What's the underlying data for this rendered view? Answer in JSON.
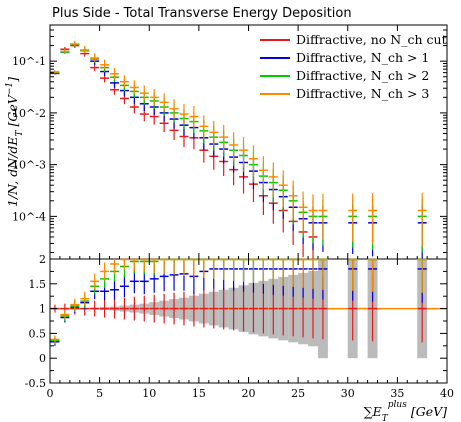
{
  "chart_data": {
    "type": "scatter",
    "title": "Plus Side - Total Transverse Energy Deposition",
    "xlabel": "∑E_T^plus [GeV]",
    "ylabel": "1/N, dN/dE_T [GeV^-1]",
    "ratio_ylabel": "",
    "xlim": [
      0,
      40
    ],
    "ylim": [
      1.5e-05,
      0.5
    ],
    "yscale": "log",
    "ratio_ylim": [
      -0.5,
      2.0
    ],
    "legend_position": "top-right",
    "x_ticks": [
      "0",
      "5",
      "10",
      "15",
      "20",
      "25",
      "30",
      "35",
      "40"
    ],
    "y_ticks": [
      "10^-4",
      "10^-3",
      "10^-2",
      "10^-1"
    ],
    "ratio_ticks": [
      "-0.5",
      "0",
      "0.5",
      "1",
      "1.5",
      "2"
    ],
    "x": [
      0.5,
      1.5,
      2.5,
      3.5,
      4.5,
      5.5,
      6.5,
      7.5,
      8.5,
      9.5,
      10.5,
      11.5,
      12.5,
      13.5,
      14.5,
      15.5,
      16.5,
      17.5,
      18.5,
      19.5,
      20.5,
      21.5,
      22.5,
      23.5,
      24.5,
      25.5,
      26.5,
      27.5,
      30.5,
      32.5,
      37.5
    ],
    "series": [
      {
        "name": "Diffractive, no N_ch cut",
        "color": "#e41a1c",
        "values": [
          0.06,
          0.17,
          0.2,
          0.14,
          0.075,
          0.047,
          0.028,
          0.019,
          0.013,
          0.0095,
          0.0085,
          0.0063,
          0.0046,
          0.0035,
          0.0033,
          0.0019,
          0.00145,
          0.00115,
          0.0008,
          0.00058,
          0.00042,
          0.00025,
          0.00018,
          0.00013,
          8e-05,
          5e-05,
          4e-05,
          null,
          null,
          null,
          null
        ],
        "ratio": [
          1.0,
          1.0,
          1.0,
          1.0,
          1.0,
          1.0,
          1.0,
          1.0,
          1.0,
          1.0,
          1.0,
          1.0,
          1.0,
          1.0,
          1.0,
          1.0,
          1.0,
          1.0,
          1.0,
          1.0,
          1.0,
          1.0,
          1.0,
          1.0,
          1.0,
          1.0,
          1.0,
          1.0,
          1.0,
          1.0,
          1.0
        ]
      },
      {
        "name": "Diffractive, N_ch > 1",
        "color": "#0000dd",
        "values": [
          0.058,
          0.15,
          0.21,
          0.16,
          0.1,
          0.063,
          0.038,
          0.027,
          0.02,
          0.015,
          0.013,
          0.01,
          0.0076,
          0.0058,
          0.0052,
          0.0033,
          0.0025,
          0.002,
          0.0014,
          0.0011,
          0.00075,
          0.00045,
          0.00033,
          0.00024,
          0.00015,
          9e-05,
          7.5e-05,
          7.5e-05,
          7.5e-05,
          7.5e-05,
          7.5e-05
        ],
        "ratio": [
          0.33,
          0.82,
          1.03,
          1.12,
          1.35,
          1.35,
          1.38,
          1.45,
          1.55,
          1.55,
          1.6,
          1.65,
          1.68,
          1.7,
          1.65,
          1.75,
          1.8,
          1.8,
          1.8,
          1.8,
          1.8,
          1.8,
          1.8,
          1.8,
          1.8,
          1.8,
          1.8,
          1.8,
          1.8,
          1.8,
          1.8
        ]
      },
      {
        "name": "Diffractive, N_ch > 2",
        "color": "#00cc00",
        "values": [
          0.06,
          0.15,
          0.21,
          0.16,
          0.11,
          0.075,
          0.049,
          0.034,
          0.026,
          0.02,
          0.017,
          0.013,
          0.01,
          0.0078,
          0.0068,
          0.0045,
          0.0034,
          0.0027,
          0.0019,
          0.0015,
          0.001,
          0.0006,
          0.00045,
          0.00032,
          0.0002,
          0.00012,
          0.0001,
          0.0001,
          0.0001,
          0.0001,
          0.0001
        ],
        "ratio": [
          0.36,
          0.85,
          1.05,
          1.15,
          1.45,
          1.6,
          1.75,
          1.85,
          1.95,
          1.95,
          1.95,
          2.0,
          2.0,
          2.0,
          2.0,
          2.0,
          2.0,
          2.0,
          2.0,
          2.0,
          2.0,
          2.0,
          2.0,
          2.0,
          2.0,
          2.0,
          2.0,
          2.0,
          2.0,
          2.0,
          2.0
        ]
      },
      {
        "name": "Diffractive, N_ch > 3",
        "color": "#ff8800",
        "values": [
          0.062,
          0.155,
          0.215,
          0.165,
          0.115,
          0.085,
          0.057,
          0.04,
          0.031,
          0.024,
          0.02,
          0.016,
          0.012,
          0.0095,
          0.0085,
          0.0055,
          0.0042,
          0.0034,
          0.0024,
          0.0019,
          0.0013,
          0.00078,
          0.00058,
          0.0004,
          0.00025,
          0.00015,
          0.00013,
          0.00013,
          0.00013,
          0.00013,
          0.00013
        ],
        "ratio": [
          0.38,
          0.88,
          1.08,
          1.2,
          1.55,
          1.75,
          1.9,
          2.0,
          2.0,
          2.0,
          2.0,
          2.0,
          2.0,
          2.0,
          2.0,
          2.0,
          2.0,
          2.0,
          2.0,
          2.0,
          2.0,
          2.0,
          2.0,
          2.0,
          2.0,
          2.0,
          2.0,
          2.0,
          2.0,
          2.0,
          2.0
        ]
      }
    ],
    "ratio_band_halfwidth": [
      0.01,
      0.01,
      0.01,
      0.01,
      0.02,
      0.03,
      0.04,
      0.06,
      0.08,
      0.1,
      0.13,
      0.16,
      0.19,
      0.22,
      0.26,
      0.3,
      0.34,
      0.38,
      0.42,
      0.47,
      0.52,
      0.56,
      0.6,
      0.64,
      0.68,
      0.72,
      0.76,
      1.0,
      1.0,
      1.0,
      1.0
    ]
  }
}
